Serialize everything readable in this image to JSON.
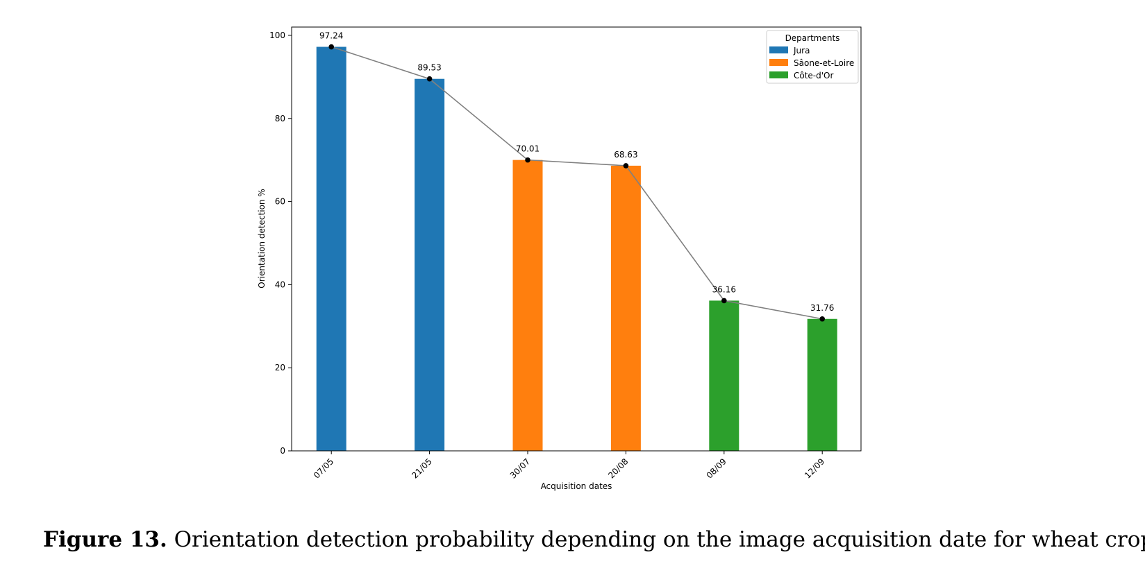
{
  "chart_data": {
    "type": "bar",
    "categories": [
      "07/05",
      "21/05",
      "30/07",
      "20/08",
      "08/09",
      "12/09"
    ],
    "values": [
      97.24,
      89.53,
      70.01,
      68.63,
      36.16,
      31.76
    ],
    "bar_groups": [
      "Jura",
      "Jura",
      "Sâone-et-Loire",
      "Sâone-et-Loire",
      "Côte-d'Or",
      "Côte-d'Or"
    ],
    "data_labels": [
      "97.24",
      "89.53",
      "70.01",
      "68.63",
      "36.16",
      "31.76"
    ],
    "overlay_line": {
      "color": "#808080",
      "marker_color": "#000000"
    },
    "xlabel": "Acquisition dates",
    "ylabel": "Orientation detection %",
    "ylim": [
      0,
      102
    ],
    "yticks": [
      0,
      20,
      40,
      60,
      80,
      100
    ],
    "grid": false,
    "legend": {
      "title": "Departments",
      "placement": "top-right",
      "entries": [
        {
          "name": "Jura",
          "color": "#1f77b4"
        },
        {
          "name": "Sâone-et-Loire",
          "color": "#ff7f0e"
        },
        {
          "name": "Côte-d'Or",
          "color": "#2ca02c"
        }
      ]
    }
  },
  "caption": {
    "label": "Figure 13.",
    "text": " Orientation detection probability depending on the image acquisition date for wheat crops"
  }
}
